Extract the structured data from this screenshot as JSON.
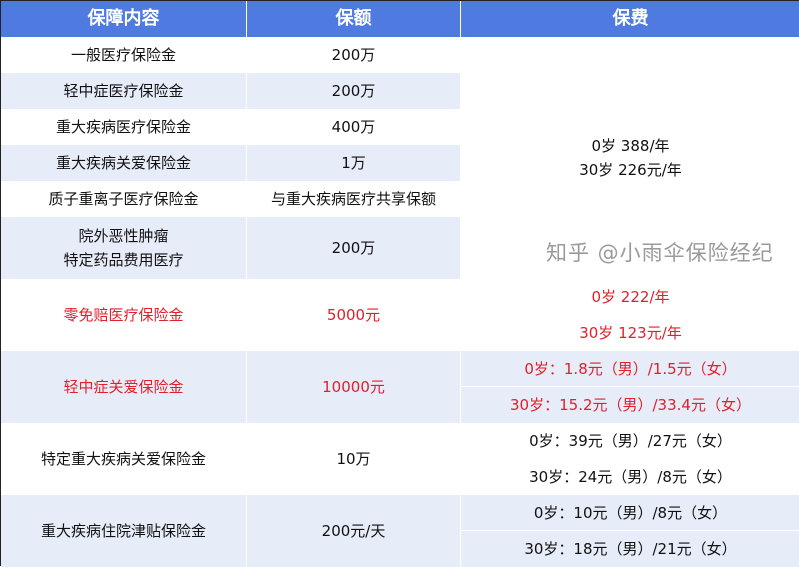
{
  "header": [
    "保障内容",
    "保额",
    "保费"
  ],
  "rows": [
    {
      "item": "一般医疗保险金",
      "amount": "200万"
    },
    {
      "item": "轻中症医疗保险金",
      "amount": "200万"
    },
    {
      "item": "重大疾病医疗保险金",
      "amount": "400万"
    },
    {
      "item": "重大疾病关爱保险金",
      "amount": "1万"
    },
    {
      "item": "质子重离子医疗保险金",
      "amount": "与重大疾病医疗共享保额"
    },
    {
      "item": "院外恶性肿瘤",
      "item2": "特定药品费用医疗",
      "amount": "200万"
    },
    {
      "item": "零免赔医疗保险金",
      "amount": "5000元",
      "highlight": true
    },
    {
      "item": "轻中症关爱保险金",
      "amount": "10000元",
      "highlight": true
    },
    {
      "item": "特定重大疾病关爱保险金",
      "amount": "10万"
    },
    {
      "item": "重大疾病住院津贴保险金",
      "amount": "200元/天"
    }
  ],
  "fees": {
    "main": [
      "0岁 388/年",
      "30岁 226元/年"
    ],
    "zero_deductible": [
      "0岁 222/年",
      "30岁 123元/年"
    ],
    "mild_care": [
      "0岁：1.8元（男）/1.5元（女）",
      "30岁：15.2元（男）/33.4元（女）"
    ],
    "specific_critical": [
      "0岁：39元（男）/27元（女）",
      "30岁：24元（男）/8元（女）"
    ],
    "hospital_allowance": [
      "0岁：10元（男）/8元（女）",
      "30岁：18元（男）/21元（女）"
    ]
  },
  "watermark": "知乎 @小雨伞保险经纪",
  "colors": {
    "header": "#4f7ae0",
    "stripe": "#e6ecf8",
    "highlight": "#e0202a"
  }
}
